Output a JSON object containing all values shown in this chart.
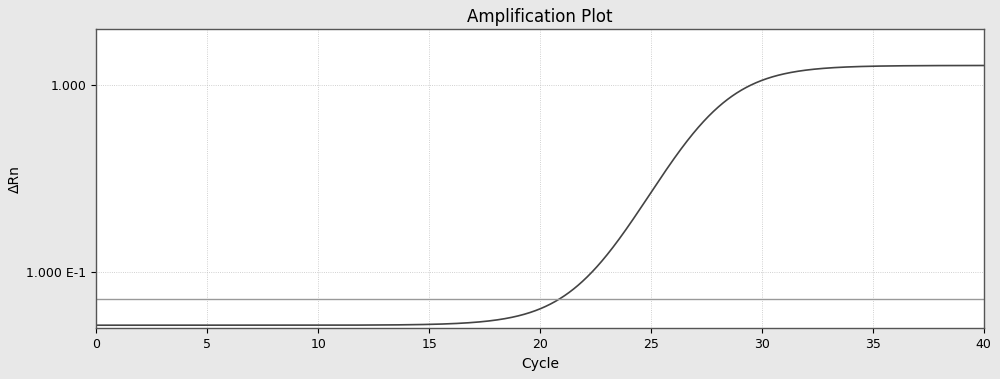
{
  "title": "Amplification Plot",
  "xlabel": "Cycle",
  "ylabel": "ΔRn",
  "xlim": [
    0,
    40
  ],
  "ylim": [
    0.05,
    2.0
  ],
  "x_ticks": [
    0,
    5,
    10,
    15,
    20,
    25,
    30,
    35,
    40
  ],
  "threshold_y": 0.072,
  "threshold_color": "#999999",
  "curve_color": "#444444",
  "background_color": "#e8e8e8",
  "plot_bg_color": "#ffffff",
  "title_fontsize": 12,
  "label_fontsize": 10,
  "tick_fontsize": 9,
  "sigmoid_midpoint": 27.5,
  "sigmoid_steepness": 0.62,
  "sigmoid_max": 1.28,
  "sigmoid_min": 0.052,
  "curve_start_cycle": 25.0,
  "y_tick_labels": [
    "1.000 E-1",
    "1.000"
  ],
  "y_tick_values": [
    0.1,
    1.0
  ],
  "grid_color": "#bbbbbb",
  "spine_color": "#555555"
}
